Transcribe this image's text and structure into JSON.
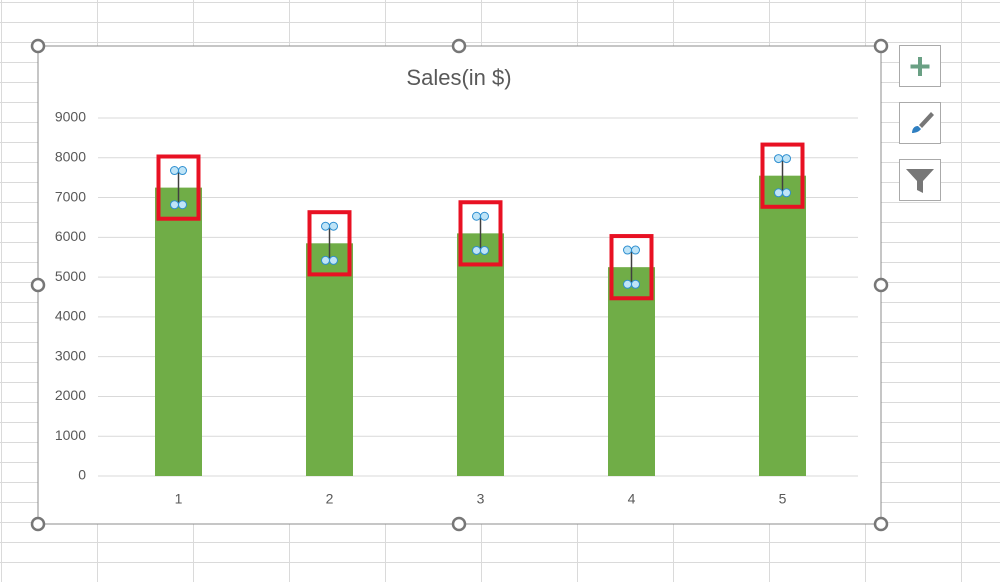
{
  "chart_data": {
    "type": "bar",
    "title": "Sales(in $)",
    "categories": [
      "1",
      "2",
      "3",
      "4",
      "5"
    ],
    "values": [
      7250,
      5850,
      6100,
      5250,
      7550
    ],
    "errors": [
      430,
      430,
      430,
      430,
      430
    ],
    "color": "#70ad47",
    "ylim": [
      0,
      9000
    ],
    "yticks": [
      0,
      1000,
      2000,
      3000,
      4000,
      5000,
      6000,
      7000,
      8000,
      9000
    ],
    "grid": true
  }
}
